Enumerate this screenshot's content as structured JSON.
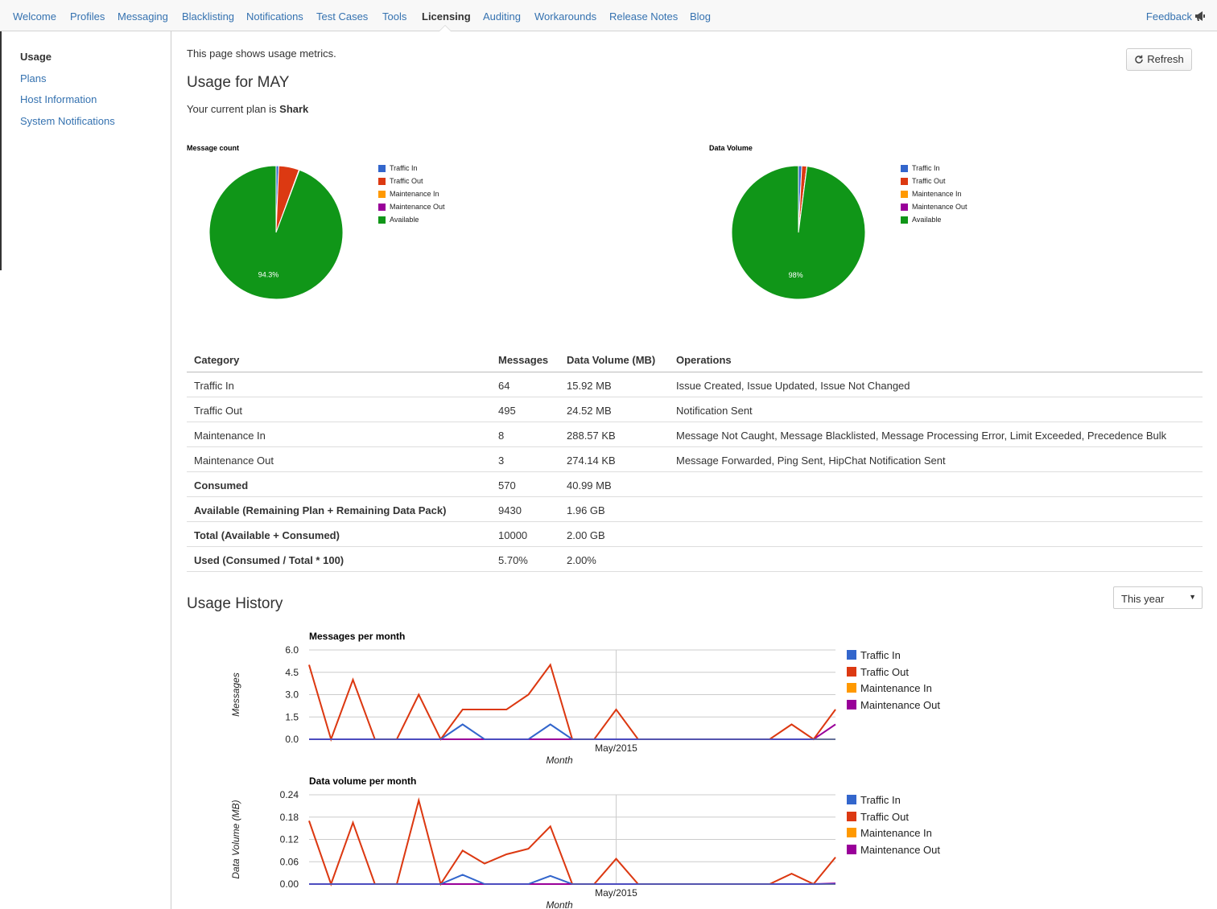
{
  "nav": {
    "items": [
      {
        "label": "Welcome",
        "active": false
      },
      {
        "label": "Profiles",
        "active": false
      },
      {
        "label": "Messaging",
        "active": false
      },
      {
        "label": "Blacklisting",
        "active": false
      },
      {
        "label": "Notifications",
        "active": false
      },
      {
        "label": "Test Cases",
        "active": false
      },
      {
        "label": "Tools",
        "active": false
      },
      {
        "label": "Licensing",
        "active": true
      },
      {
        "label": "Auditing",
        "active": false
      },
      {
        "label": "Workarounds",
        "active": false
      },
      {
        "label": "Release Notes",
        "active": false
      },
      {
        "label": "Blog",
        "active": false
      }
    ],
    "feedback_label": "Feedback",
    "feedback_icon": "megaphone-icon"
  },
  "sidebar": {
    "items": [
      {
        "label": "Usage",
        "active": true
      },
      {
        "label": "Plans",
        "active": false
      },
      {
        "label": "Host Information",
        "active": false
      },
      {
        "label": "System Notifications",
        "active": false
      }
    ]
  },
  "main": {
    "intro": "This page shows usage metrics.",
    "refresh_label": "Refresh",
    "refresh_icon": "refresh-icon",
    "usage_title": "Usage for MAY",
    "plan_prefix": "Your current plan is",
    "plan_name": "Shark",
    "history_title": "Usage History",
    "range_select": {
      "value": "This year"
    }
  },
  "colors": {
    "traffic_in": "#3366cc",
    "traffic_out": "#dc3912",
    "maintenance_in": "#ff9900",
    "maintenance_out": "#990099",
    "available": "#109618"
  },
  "table": {
    "headers": [
      "Category",
      "Messages",
      "Data Volume (MB)",
      "Operations"
    ],
    "rows": [
      {
        "category": "Traffic In",
        "messages": "64",
        "volume": "15.92 MB",
        "operations": "Issue Created, Issue Updated, Issue Not Changed",
        "bold": false
      },
      {
        "category": "Traffic Out",
        "messages": "495",
        "volume": "24.52 MB",
        "operations": "Notification Sent",
        "bold": false
      },
      {
        "category": "Maintenance In",
        "messages": "8",
        "volume": "288.57 KB",
        "operations": "Message Not Caught, Message Blacklisted, Message Processing Error, Limit Exceeded, Precedence Bulk",
        "bold": false
      },
      {
        "category": "Maintenance Out",
        "messages": "3",
        "volume": "274.14 KB",
        "operations": "Message Forwarded, Ping Sent, HipChat Notification Sent",
        "bold": false
      },
      {
        "category": "Consumed",
        "messages": "570",
        "volume": "40.99 MB",
        "operations": "",
        "bold": true
      },
      {
        "category": "Available (Remaining Plan + Remaining Data Pack)",
        "messages": "9430",
        "volume": "1.96 GB",
        "operations": "",
        "bold": true
      },
      {
        "category": "Total (Available + Consumed)",
        "messages": "10000",
        "volume": "2.00 GB",
        "operations": "",
        "bold": true
      },
      {
        "category": "Used (Consumed / Total * 100)",
        "messages": "5.70%",
        "volume": "2.00%",
        "operations": "",
        "bold": true
      }
    ]
  },
  "chart_data": [
    {
      "type": "pie",
      "title": "Message count",
      "labels": [
        "Traffic In",
        "Traffic Out",
        "Maintenance In",
        "Maintenance Out",
        "Available"
      ],
      "values": [
        64,
        495,
        8,
        3,
        9430
      ],
      "slice_labels": [
        "",
        "",
        "",
        "",
        "94.3%"
      ],
      "legend": "right"
    },
    {
      "type": "pie",
      "title": "Data Volume",
      "labels": [
        "Traffic In",
        "Traffic Out",
        "Maintenance In",
        "Maintenance Out",
        "Available"
      ],
      "values": [
        15.92,
        24.52,
        0.28,
        0.27,
        1960
      ],
      "slice_labels": [
        "",
        "",
        "",
        "",
        "98%"
      ],
      "legend": "right"
    },
    {
      "type": "line",
      "title": "Messages per month",
      "xlabel": "Month",
      "ylabel": "Messages",
      "x_tick_labels": [
        "May/2015"
      ],
      "yticks": [
        "0.0",
        "1.5",
        "3.0",
        "4.5",
        "6.0"
      ],
      "ylim": [
        0,
        6
      ],
      "grid": true,
      "legend": "right",
      "series": [
        {
          "name": "Traffic In",
          "values": [
            0,
            0,
            0,
            0,
            0,
            0,
            0,
            1,
            0,
            0,
            0,
            1,
            0,
            0,
            0,
            0,
            0,
            0,
            0,
            0,
            0,
            0,
            0,
            0,
            0
          ]
        },
        {
          "name": "Traffic Out",
          "values": [
            5,
            0,
            4,
            0,
            0,
            3,
            0,
            2,
            2,
            2,
            3,
            5,
            0,
            0,
            2,
            0,
            0,
            0,
            0,
            0,
            0,
            0,
            1,
            0,
            2
          ]
        },
        {
          "name": "Maintenance In",
          "values": [
            0,
            0,
            0,
            0,
            0,
            0,
            0,
            0,
            0,
            0,
            0,
            0,
            0,
            0,
            0,
            0,
            0,
            0,
            0,
            0,
            0,
            0,
            0,
            0,
            0
          ]
        },
        {
          "name": "Maintenance Out",
          "values": [
            0,
            0,
            0,
            0,
            0,
            0,
            0,
            0,
            0,
            0,
            0,
            0,
            0,
            0,
            0,
            0,
            0,
            0,
            0,
            0,
            0,
            0,
            0,
            0,
            1
          ]
        }
      ]
    },
    {
      "type": "line",
      "title": "Data volume per month",
      "xlabel": "Month",
      "ylabel": "Data Volume (MB)",
      "x_tick_labels": [
        "May/2015"
      ],
      "yticks": [
        "0.00",
        "0.06",
        "0.12",
        "0.18",
        "0.24"
      ],
      "ylim": [
        0,
        0.24
      ],
      "grid": true,
      "legend": "right",
      "series": [
        {
          "name": "Traffic In",
          "values": [
            0,
            0,
            0,
            0,
            0,
            0,
            0,
            0.025,
            0,
            0,
            0,
            0.022,
            0,
            0,
            0,
            0,
            0,
            0,
            0,
            0,
            0,
            0,
            0,
            0,
            0
          ]
        },
        {
          "name": "Traffic Out",
          "values": [
            0.17,
            0,
            0.165,
            0,
            0,
            0.225,
            0,
            0.09,
            0.055,
            0.08,
            0.095,
            0.155,
            0,
            0,
            0.068,
            0,
            0,
            0,
            0,
            0,
            0,
            0,
            0.028,
            0,
            0.072
          ]
        },
        {
          "name": "Maintenance In",
          "values": [
            0,
            0,
            0,
            0,
            0,
            0,
            0,
            0,
            0,
            0,
            0,
            0,
            0,
            0,
            0,
            0,
            0,
            0,
            0,
            0,
            0,
            0,
            0,
            0,
            0
          ]
        },
        {
          "name": "Maintenance Out",
          "values": [
            0,
            0,
            0,
            0,
            0,
            0,
            0,
            0,
            0,
            0,
            0,
            0,
            0,
            0,
            0,
            0,
            0,
            0,
            0,
            0,
            0,
            0,
            0,
            0,
            0.002
          ]
        }
      ]
    }
  ]
}
